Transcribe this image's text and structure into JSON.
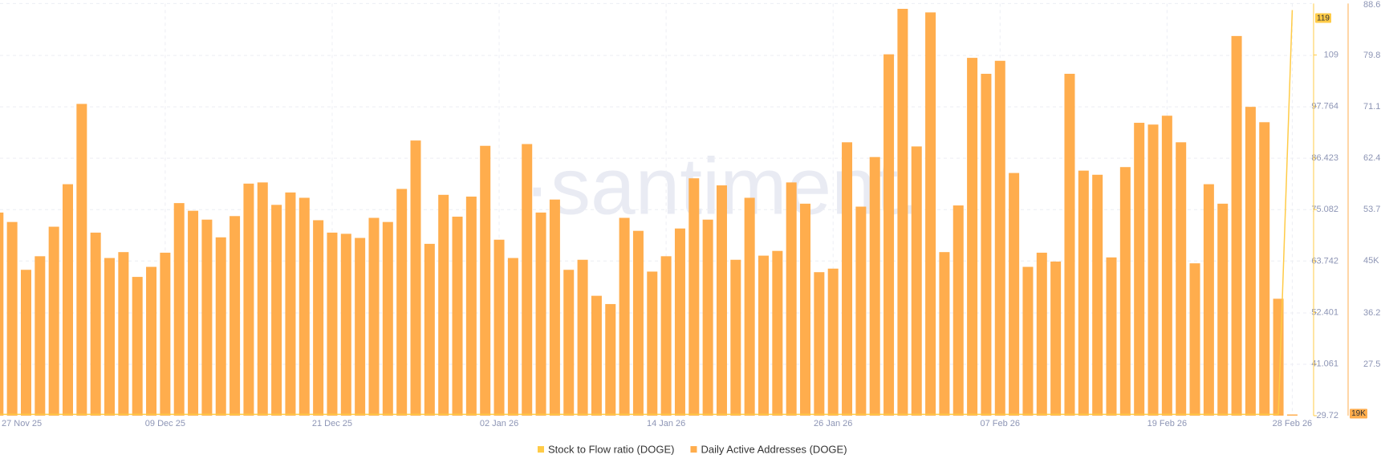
{
  "chart_data": {
    "type": "bar",
    "watermark": "·santiment.",
    "categories": [
      "27 Nov 25",
      null,
      null,
      null,
      null,
      null,
      null,
      null,
      null,
      null,
      null,
      null,
      "09 Dec 25",
      null,
      null,
      null,
      null,
      null,
      null,
      null,
      null,
      null,
      null,
      null,
      "21 Dec 25",
      null,
      null,
      null,
      null,
      null,
      null,
      null,
      null,
      null,
      null,
      null,
      "02 Jan 26",
      null,
      null,
      null,
      null,
      null,
      null,
      null,
      null,
      null,
      null,
      null,
      "14 Jan 26",
      null,
      null,
      null,
      null,
      null,
      null,
      null,
      null,
      null,
      null,
      null,
      "26 Jan 26",
      null,
      null,
      null,
      null,
      null,
      null,
      null,
      null,
      null,
      null,
      null,
      "07 Feb 26",
      null,
      null,
      null,
      null,
      null,
      null,
      null,
      null,
      null,
      null,
      null,
      "19 Feb 26",
      null,
      null,
      null,
      null,
      null,
      null,
      null,
      null,
      "28 Feb 26"
    ],
    "series": [
      {
        "name": "Stock to Flow ratio (DOGE)",
        "type": "line",
        "color": "#ffcb47",
        "values": [
          30,
          30,
          30,
          30,
          30,
          30,
          30,
          30,
          30,
          30,
          30,
          30,
          30,
          30,
          30,
          30,
          30,
          30,
          30,
          30,
          30,
          30,
          30,
          30,
          30,
          30,
          30,
          30,
          30,
          30,
          30,
          30,
          30,
          30,
          30,
          30,
          30,
          30,
          30,
          30,
          30,
          30,
          30,
          30,
          30,
          30,
          30,
          30,
          30,
          30,
          30,
          30,
          30,
          30,
          30,
          30,
          30,
          30,
          30,
          30,
          30,
          30,
          30,
          30,
          30,
          30,
          30,
          30,
          30,
          30,
          30,
          30,
          30,
          30,
          30,
          30,
          30,
          30,
          30,
          30,
          30,
          30,
          30,
          30,
          30,
          30,
          30,
          30,
          30,
          30,
          30,
          30,
          30,
          119
        ]
      },
      {
        "name": "Daily Active Addresses (DOGE)",
        "type": "bar",
        "axis": "y2",
        "color": "#ffad4d",
        "values": [
          53200,
          51600,
          43500,
          45800,
          50800,
          58000,
          71600,
          49800,
          45500,
          46500,
          42300,
          44000,
          46400,
          54800,
          53500,
          52000,
          49000,
          52600,
          58100,
          58300,
          54500,
          56600,
          55700,
          51900,
          49800,
          49600,
          48900,
          52300,
          51600,
          57200,
          65400,
          47900,
          56200,
          52500,
          55900,
          64500,
          48600,
          45500,
          64800,
          53200,
          55400,
          43500,
          45200,
          39100,
          37700,
          52300,
          50100,
          43200,
          45800,
          50500,
          59000,
          52000,
          57800,
          45200,
          55700,
          45900,
          46700,
          58300,
          54700,
          43100,
          43700,
          65100,
          54200,
          62600,
          80000,
          87700,
          64400,
          87100,
          46500,
          54400,
          79400,
          76700,
          78900,
          59900,
          44000,
          46400,
          44900,
          76700,
          60300,
          59600,
          45600,
          60900,
          68400,
          68100,
          69600,
          65100,
          44600,
          58000,
          54700,
          83100,
          71100,
          68500,
          38600,
          19000
        ],
        "value_labels": [
          null,
          null,
          null,
          null,
          null,
          null,
          null,
          null,
          null,
          null,
          null,
          null,
          null,
          null,
          null,
          null,
          null,
          null,
          null,
          null,
          null,
          null,
          null,
          null,
          null,
          null,
          null,
          null,
          null,
          null,
          null,
          null,
          null,
          null,
          null,
          null,
          null,
          null,
          null,
          null,
          null,
          null,
          null,
          null,
          null,
          null,
          null,
          null,
          null,
          null,
          null,
          null,
          null,
          null,
          null,
          null,
          null,
          null,
          null,
          null,
          null,
          null,
          null,
          null,
          null,
          null,
          null,
          null,
          null,
          null,
          null,
          null,
          null,
          null,
          null,
          null,
          null,
          null,
          null,
          null,
          null,
          null,
          null,
          null,
          null,
          null,
          null,
          null,
          null,
          null,
          null,
          null,
          null,
          "19K"
        ]
      }
    ],
    "ylim": [
      29.72,
      120.44
    ],
    "yticks": [
      29.72,
      41.061,
      52.401,
      63.742,
      75.082,
      86.423,
      97.764,
      {
        "value": 109.104,
        "label": "109"
      }
    ],
    "y2lim": [
      18800,
      88600
    ],
    "y2ticks": [
      {
        "value": 27500,
        "label": "27.5K"
      },
      {
        "value": 36200,
        "label": "36.2K"
      },
      {
        "value": 45000,
        "label": "45K"
      },
      {
        "value": 53700,
        "label": "53.7K"
      },
      {
        "value": 62400,
        "label": "62.4K"
      },
      {
        "value": 71100,
        "label": "71.1K"
      },
      {
        "value": 79800,
        "label": "79.8K"
      },
      {
        "value": 88600,
        "label": "88.6K"
      }
    ],
    "grid": true
  }
}
